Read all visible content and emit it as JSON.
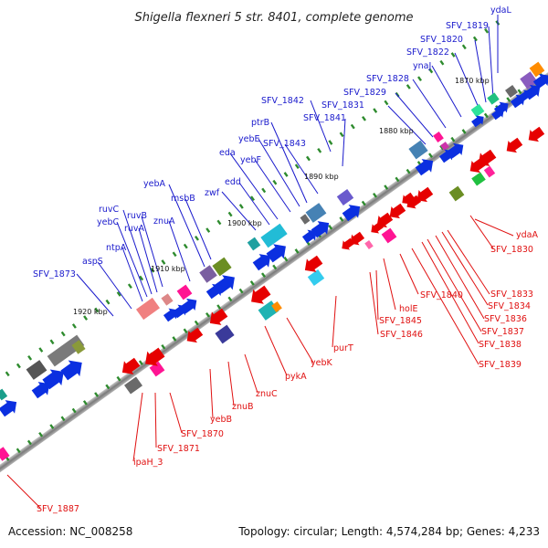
{
  "title": "Shigella flexneri 5 str. 8401, complete genome",
  "accession": "Accession: NC_008258",
  "summary": "Topology: circular; Length: 4,574,284 bp; Genes: 4,233",
  "colors": {
    "forward_label": "#1a1acc",
    "reverse_label": "#e01010",
    "forward_arrow": "#0b2fe0",
    "reverse_arrow": "#e60000",
    "backbone": "#8a8a8a",
    "tick_mark": "#2e8b2e"
  },
  "ticks": [
    "1870 kbp",
    "1880 kbp",
    "1890 kbp",
    "1900 kbp",
    "1910 kbp",
    "1920 kbp"
  ],
  "forward_labels": [
    "ydaL",
    "SFV_1819",
    "SFV_1820",
    "SFV_1822",
    "ynaJ",
    "SFV_1828",
    "SFV_1829",
    "SFV_1831",
    "SFV_1842",
    "SFV_1841",
    "ptrB",
    "yebE",
    "SFV_1843",
    "yebF",
    "eda",
    "edd",
    "zwf",
    "msbB",
    "yebA",
    "ruvC",
    "ruvB",
    "yebC",
    "ruvA",
    "znuA",
    "ntpA",
    "aspS",
    "SFV_1873"
  ],
  "reverse_labels": [
    "ydaA",
    "SFV_1830",
    "SFV_1833",
    "SFV_1834",
    "SFV_1836",
    "SFV_1837",
    "SFV_1838",
    "SFV_1839",
    "SFV_1840",
    "holE",
    "SFV_1845",
    "SFV_1846",
    "purT",
    "yebK",
    "pykA",
    "znuC",
    "znuB",
    "yebB",
    "SFV_1870",
    "SFV_1871",
    "ipaH_3",
    "SFV_1887"
  ]
}
